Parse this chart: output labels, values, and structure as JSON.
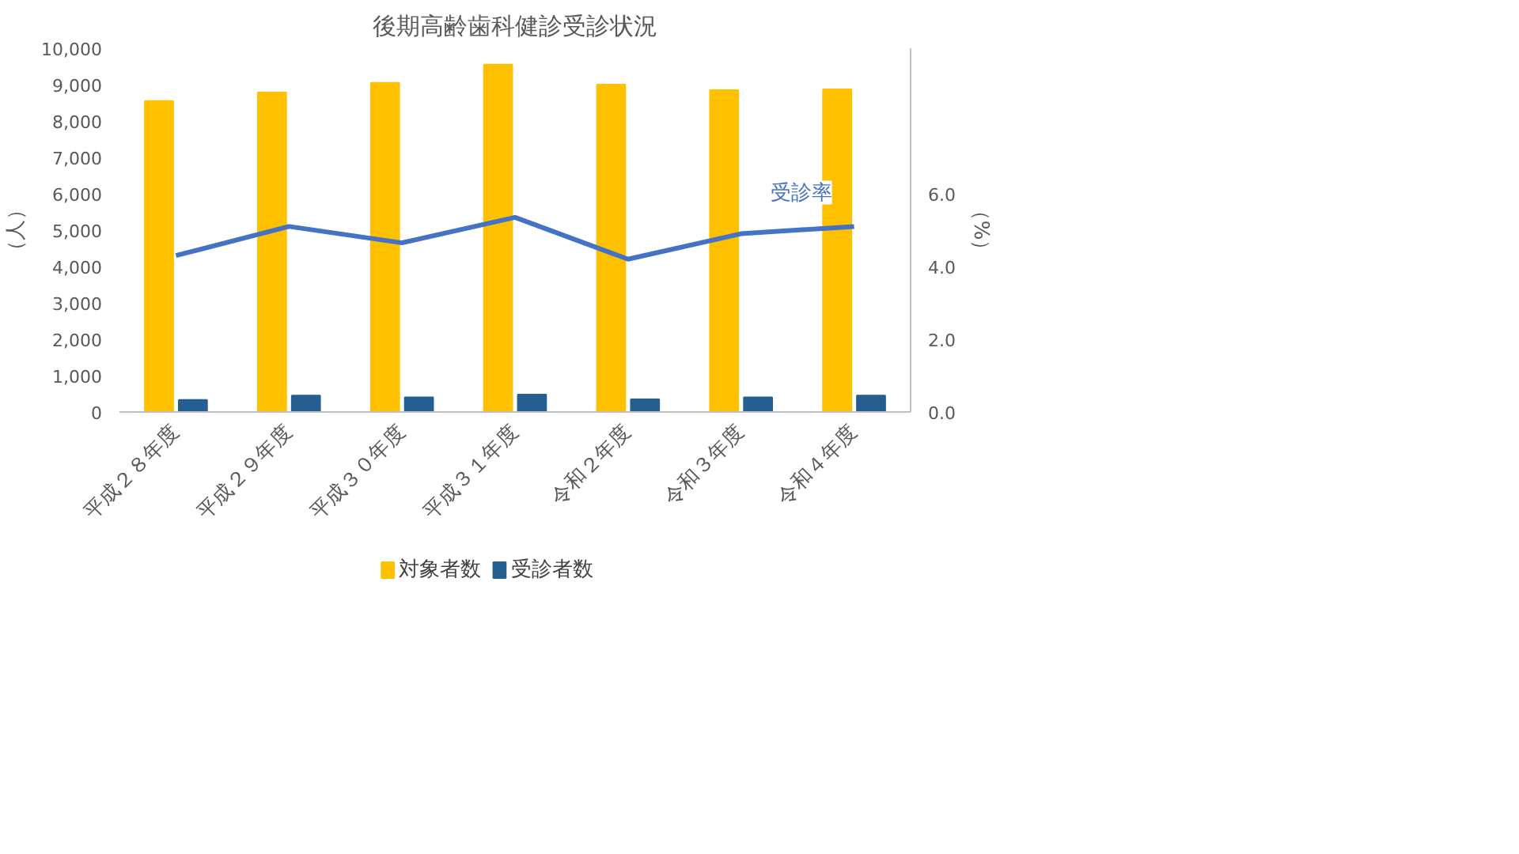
{
  "chart_data": {
    "type": "bar",
    "title": "後期高齢歯科健診受診状況",
    "ylabel": "（人）",
    "y2label": "（%）",
    "categories": [
      "平成２８年度",
      "平成２９年度",
      "平成３０年度",
      "平成３１年度",
      "令和２年度",
      "令和３年度",
      "令和４年度"
    ],
    "series": [
      {
        "name": "対象者数",
        "color": "#ffc000",
        "values": [
          8550,
          8780,
          9050,
          9550,
          9000,
          8850,
          8870
        ]
      },
      {
        "name": "受診者数",
        "color": "#255e91",
        "values": [
          330,
          450,
          400,
          480,
          350,
          400,
          450
        ]
      },
      {
        "name": "受診率",
        "type": "line",
        "axis": "y2",
        "color": "#4472c4",
        "values": [
          4.3,
          5.1,
          4.65,
          5.35,
          4.2,
          4.9,
          5.1
        ]
      }
    ],
    "ylim": [
      0,
      10000
    ],
    "yticks": [
      0,
      {
        "value": 1000,
        "label": "1,000"
      },
      {
        "value": 2000,
        "label": "2,000"
      },
      {
        "value": 3000,
        "label": "3,000"
      },
      {
        "value": 4000,
        "label": "4,000"
      },
      {
        "value": 5000,
        "label": "5,000"
      },
      {
        "value": 6000,
        "label": "6,000"
      },
      {
        "value": 7000,
        "label": "7,000"
      },
      {
        "value": 8000,
        "label": "8,000"
      },
      {
        "value": 9000,
        "label": "9,000"
      },
      {
        "value": 10000,
        "label": "10,000"
      }
    ],
    "y2lim": [
      0,
      10
    ],
    "y2ticks": [
      {
        "value": 0,
        "label": "0.0"
      },
      {
        "value": 2,
        "label": "2.0"
      },
      {
        "value": 4,
        "label": "4.0"
      },
      {
        "value": 6,
        "label": "6.0"
      }
    ],
    "grid": false,
    "legend": "bottom",
    "marker": "none",
    "line_style": "solid"
  }
}
